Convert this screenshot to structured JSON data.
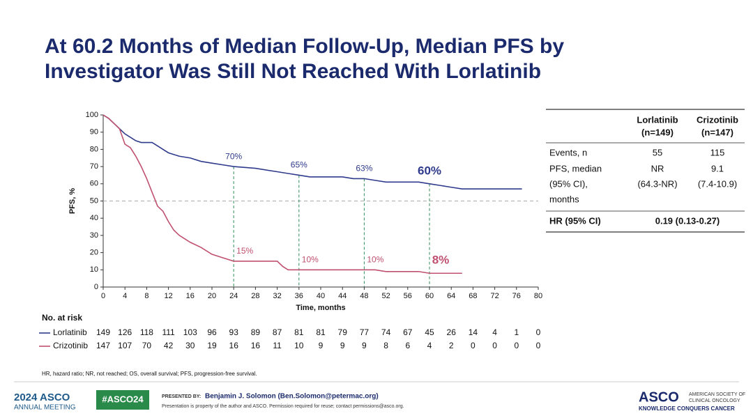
{
  "slide": {
    "title": [
      "At 60.2 Months of Median Follow-Up, Median PFS by",
      "Investigator Was Still Not Reached With Lorlatinib"
    ]
  },
  "chart_data": {
    "type": "line",
    "xlabel": "Time, months",
    "ylabel": "PFS, %",
    "xlim": [
      0,
      80
    ],
    "xticks": [
      0,
      4,
      8,
      12,
      16,
      20,
      24,
      28,
      32,
      36,
      40,
      44,
      48,
      52,
      56,
      60,
      64,
      68,
      72,
      76,
      80
    ],
    "ylim": [
      0,
      100
    ],
    "yticks": [
      0,
      10,
      20,
      30,
      40,
      50,
      60,
      70,
      80,
      90,
      100
    ],
    "reference_line": 50,
    "series": [
      {
        "name": "Lorlatinib",
        "color": "#2e3a8c",
        "x": [
          0,
          1,
          2,
          3,
          4,
          5,
          6,
          7,
          9,
          10,
          11,
          12,
          14,
          16,
          18,
          20,
          22,
          24,
          28,
          32,
          34,
          36,
          38,
          44,
          46,
          48,
          50,
          52,
          58,
          60,
          62,
          64,
          66,
          77
        ],
        "values": [
          100,
          98,
          95,
          92,
          89,
          87,
          85,
          84,
          84,
          82,
          80,
          78,
          76,
          75,
          73,
          72,
          71,
          70,
          69,
          67,
          66,
          65,
          64,
          64,
          63,
          63,
          62,
          61,
          61,
          60,
          59,
          58,
          57,
          57
        ],
        "landmarks": {
          "x": [
            24,
            36,
            48,
            60
          ],
          "values": [
            70,
            65,
            63,
            60
          ],
          "value_labels": [
            "70%",
            "65%",
            "63%",
            "60%"
          ]
        }
      },
      {
        "name": "Crizotinib",
        "color": "#c0506f",
        "x": [
          0,
          1,
          2,
          3,
          4,
          5,
          6,
          7,
          8,
          9,
          10,
          11,
          12,
          13,
          14,
          15,
          16,
          18,
          20,
          22,
          24,
          32,
          33,
          34,
          50,
          52,
          58,
          60,
          66
        ],
        "values": [
          100,
          98,
          95,
          92,
          83,
          81,
          76,
          70,
          63,
          55,
          47,
          44,
          38,
          33,
          30,
          28,
          26,
          23,
          19,
          17,
          15,
          15,
          12,
          10,
          10,
          9,
          9,
          8,
          8
        ],
        "landmarks": {
          "x": [
            24,
            36,
            48,
            60
          ],
          "values": [
            15,
            10,
            10,
            8
          ],
          "value_labels": [
            "15%",
            "10%",
            "10%",
            "8%"
          ]
        }
      }
    ],
    "risk_table": {
      "title": "No. at risk",
      "rows": [
        [
          149,
          126,
          118,
          111,
          103,
          96,
          93,
          89,
          87,
          81,
          81,
          79,
          77,
          74,
          67,
          45,
          26,
          14,
          4,
          1,
          0
        ],
        [
          147,
          107,
          70,
          42,
          30,
          19,
          16,
          16,
          11,
          10,
          9,
          9,
          9,
          8,
          6,
          4,
          2,
          0,
          0,
          0,
          0
        ]
      ]
    }
  },
  "table": {
    "header": [
      [
        "Lorlatinib",
        "(n=149)"
      ],
      [
        "Crizotinib",
        "(n=147)"
      ]
    ],
    "rows": [
      [
        [
          "Events, n"
        ],
        [
          "55"
        ],
        [
          "115"
        ]
      ],
      [
        [
          "PFS, median",
          "(95% CI),",
          "months"
        ],
        [
          "NR",
          "(64.3-NR)"
        ],
        [
          "9.1",
          "(7.4-10.9)"
        ]
      ],
      [
        [
          "HR (95% CI)"
        ],
        [
          "0.19 (0.13-0.27)"
        ]
      ]
    ]
  },
  "footnote": "HR, hazard ratio; NR, not reached; OS, overall survival; PFS, progression-free survival.",
  "footer": {
    "meeting": [
      "2024 ASCO",
      "ANNUAL MEETING"
    ],
    "hashtag": "#ASCO24",
    "presented_by": "PRESENTED BY:",
    "presenter": "Benjamin J. Solomon (Ben.Solomon@petermac.org)",
    "notice": "Presentation is property of the author and ASCO. Permission required for reuse; contact permissions@asco.org.",
    "logo": "ASCO",
    "society": [
      "AMERICAN SOCIETY OF",
      "CLINICAL ONCOLOGY"
    ],
    "tagline": "KNOWLEDGE CONQUERS CANCER"
  }
}
